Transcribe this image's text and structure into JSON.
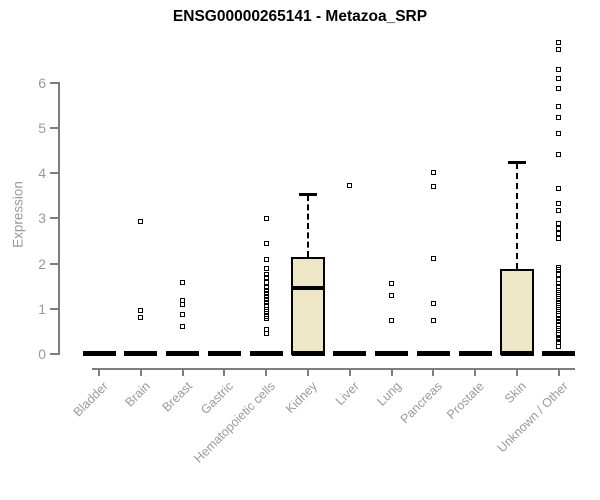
{
  "title": "ENSG00000265141 - Metazoa_SRP",
  "colors": {
    "box_fill": "#ede7c7",
    "axis_line": "#7d7d7d",
    "axis_text": "#9a9a9a",
    "data_ink": "#000000",
    "background": "#ffffff"
  },
  "chart_data": {
    "type": "boxplot",
    "title": "ENSG00000265141 - Metazoa_SRP",
    "xlabel": "",
    "ylabel": "Expression",
    "ylim": [
      0,
      6.9
    ],
    "yticks": [
      0,
      1,
      2,
      3,
      4,
      5,
      6
    ],
    "grid": false,
    "legend": "none",
    "categories": [
      "Bladder",
      "Brain",
      "Breast",
      "Gastric",
      "Hematopoietic cells",
      "Kidney",
      "Liver",
      "Lung",
      "Pancreas",
      "Prostate",
      "Skin",
      "Unknown / Other"
    ],
    "series": [
      {
        "name": "Bladder",
        "q1": 0,
        "median": 0,
        "q3": 0,
        "whisker_low": 0,
        "whisker_high": 0,
        "outliers": []
      },
      {
        "name": "Brain",
        "q1": 0,
        "median": 0,
        "q3": 0,
        "whisker_low": 0,
        "whisker_high": 0,
        "outliers": [
          2.9,
          0.93,
          0.78
        ]
      },
      {
        "name": "Breast",
        "q1": 0,
        "median": 0,
        "q3": 0,
        "whisker_low": 0,
        "whisker_high": 0,
        "outliers": [
          1.55,
          1.17,
          1.08,
          0.85,
          0.58
        ]
      },
      {
        "name": "Gastric",
        "q1": 0,
        "median": 0,
        "q3": 0,
        "whisker_low": 0,
        "whisker_high": 0,
        "outliers": []
      },
      {
        "name": "Hematopoietic cells",
        "q1": 0,
        "median": 0,
        "q3": 0,
        "whisker_low": 0,
        "whisker_high": 0,
        "outliers": [
          2.97,
          2.43,
          2.07,
          1.87,
          1.73,
          1.68,
          1.56,
          1.46,
          1.39,
          1.32,
          1.25,
          1.18,
          1.11,
          1.04,
          0.97,
          0.91,
          0.81,
          0.76,
          0.51,
          0.44
        ]
      },
      {
        "name": "Kidney",
        "q1": 0,
        "median": 1.43,
        "q3": 2.12,
        "whisker_low": 0,
        "whisker_high": 3.5,
        "outliers": []
      },
      {
        "name": "Liver",
        "q1": 0,
        "median": 0,
        "q3": 0,
        "whisker_low": 0,
        "whisker_high": 0,
        "outliers": [
          3.7
        ]
      },
      {
        "name": "Lung",
        "q1": 0,
        "median": 0,
        "q3": 0,
        "whisker_low": 0,
        "whisker_high": 0,
        "outliers": [
          1.54,
          1.28,
          0.71
        ]
      },
      {
        "name": "Pancreas",
        "q1": 0,
        "median": 0,
        "q3": 0,
        "whisker_low": 0,
        "whisker_high": 0,
        "outliers": [
          4.0,
          3.68,
          2.1,
          1.1,
          0.71
        ]
      },
      {
        "name": "Prostate",
        "q1": 0,
        "median": 0,
        "q3": 0,
        "whisker_low": 0,
        "whisker_high": 0,
        "outliers": []
      },
      {
        "name": "Skin",
        "q1": 0,
        "median": 0,
        "q3": 1.85,
        "whisker_low": 0,
        "whisker_high": 4.2,
        "outliers": []
      },
      {
        "name": "Unknown / Other",
        "q1": 0,
        "median": 0,
        "q3": 0,
        "whisker_low": 0,
        "whisker_high": 0,
        "outliers": [
          6.88,
          6.72,
          6.28,
          6.08,
          5.85,
          5.46,
          5.2,
          4.85,
          4.4,
          3.63,
          3.3,
          3.16,
          2.86,
          2.76,
          2.65,
          2.54,
          1.9,
          1.84,
          1.73,
          1.62,
          1.54,
          1.47,
          1.39,
          1.33,
          1.26,
          1.2,
          1.1,
          1.04,
          0.97,
          0.91,
          0.84,
          0.77,
          0.69,
          0.62,
          0.55,
          0.49,
          0.42,
          0.35,
          0.29,
          0.23,
          0.15
        ]
      }
    ]
  }
}
